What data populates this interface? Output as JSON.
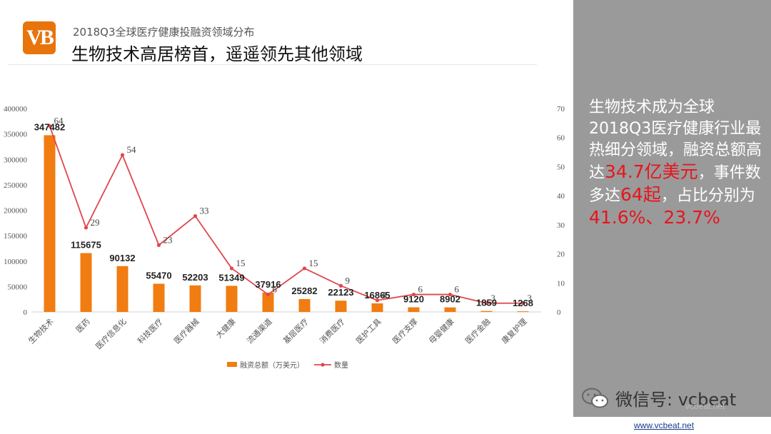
{
  "header": {
    "logo_text": "VB",
    "subtitle": "2018Q3全球医疗健康投融资领域分布",
    "title": "生物技术高居榜首，遥遥领先其他领域"
  },
  "side": {
    "text_1": "生物技术成为全球2018Q3医疗健康行业最热细分领域，融资总额高达",
    "highlight_1": "34.7亿美元",
    "text_2": "，事件数多达",
    "highlight_2": "64起",
    "text_3": "，占比分别为",
    "highlight_3": "41.6%、23.7%"
  },
  "footer": {
    "wechat": "微信号: vcbeat",
    "watermark": "vcbeat.net",
    "url": "www.vcbeat.net"
  },
  "colors": {
    "bar": "#f07c12",
    "line": "#e0474c",
    "accent": "#e8141c",
    "panel": "#9a9a9a"
  },
  "chart_data": {
    "type": "bar",
    "title": "",
    "categories": [
      "生物技术",
      "医药",
      "医疗信息化",
      "科技医疗",
      "医疗器械",
      "大健康",
      "流通渠道",
      "基层医疗",
      "消费医疗",
      "医护工具",
      "医疗支撑",
      "母婴健康",
      "医疗金融",
      "康复护理"
    ],
    "series": [
      {
        "name": "融资总额（万美元）",
        "type": "bar",
        "axis": "left",
        "values": [
          347482,
          115675,
          90132,
          55470,
          52203,
          51349,
          37916,
          25282,
          22123,
          16865,
          9120,
          8902,
          1859,
          1268
        ]
      },
      {
        "name": "数量",
        "type": "line",
        "axis": "right",
        "values": [
          64,
          29,
          54,
          23,
          33,
          15,
          6,
          15,
          9,
          4,
          6,
          6,
          3,
          3
        ]
      }
    ],
    "y_left": {
      "min": 0,
      "max": 400000,
      "ticks": [
        0,
        50000,
        100000,
        150000,
        200000,
        250000,
        300000,
        350000,
        400000
      ]
    },
    "y_right": {
      "min": 0,
      "max": 70,
      "ticks": [
        0,
        10,
        20,
        30,
        40,
        50,
        60,
        70
      ]
    },
    "legend_position": "bottom"
  }
}
